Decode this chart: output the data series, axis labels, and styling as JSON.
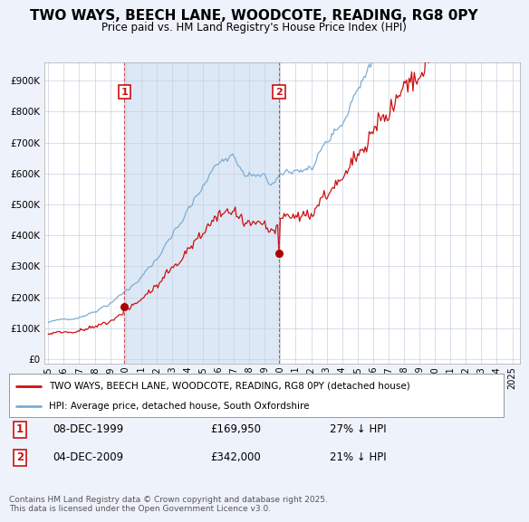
{
  "title": "TWO WAYS, BEECH LANE, WOODCOTE, READING, RG8 0PY",
  "subtitle": "Price paid vs. HM Land Registry's House Price Index (HPI)",
  "title_fontsize": 11,
  "subtitle_fontsize": 9,
  "line1_label": "TWO WAYS, BEECH LANE, WOODCOTE, READING, RG8 0PY (detached house)",
  "line2_label": "HPI: Average price, detached house, South Oxfordshire",
  "line1_color": "#cc0000",
  "line2_color": "#6699cc",
  "purchase1_date": "08-DEC-1999",
  "purchase1_price": "£169,950",
  "purchase1_hpi": "27% ↓ HPI",
  "purchase2_date": "04-DEC-2009",
  "purchase2_price": "£342,000",
  "purchase2_hpi": "21% ↓ HPI",
  "yticks": [
    0,
    100000,
    200000,
    300000,
    400000,
    500000,
    600000,
    700000,
    800000,
    900000
  ],
  "ytick_labels": [
    "£0",
    "£100K",
    "£200K",
    "£300K",
    "£400K",
    "£500K",
    "£600K",
    "£700K",
    "£800K",
    "£900K"
  ],
  "ylim": [
    -15000,
    960000
  ],
  "bg_color": "#eef2fb",
  "plot_bg_color": "#ffffff",
  "shade_color": "#dce8f5",
  "footer_text": "Contains HM Land Registry data © Crown copyright and database right 2025.\nThis data is licensed under the Open Government Licence v3.0."
}
